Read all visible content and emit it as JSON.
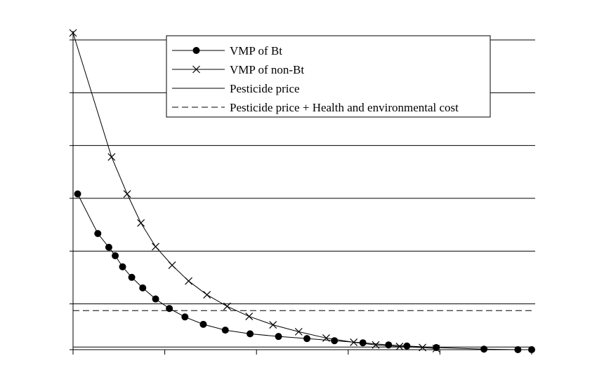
{
  "chart_data": {
    "type": "line",
    "title": "",
    "xlabel": "",
    "ylabel": "",
    "xlim": [
      0,
      50
    ],
    "ylim": [
      0,
      6
    ],
    "grid": true,
    "legend_position": "top-right",
    "series": [
      {
        "name": "VMP of Bt",
        "marker": "circle",
        "line": "solid",
        "x": [
          0.5,
          2.7,
          3.9,
          4.6,
          5.4,
          6.4,
          7.6,
          9.0,
          10.5,
          12.2,
          14.2,
          16.6,
          19.3,
          22.4,
          25.5,
          28.5,
          31.6,
          34.4,
          36.4,
          39.6,
          44.8,
          48.5,
          50.0
        ],
        "y": [
          2.95,
          2.2,
          1.94,
          1.78,
          1.57,
          1.37,
          1.17,
          0.96,
          0.78,
          0.62,
          0.48,
          0.37,
          0.3,
          0.25,
          0.21,
          0.17,
          0.13,
          0.09,
          0.07,
          0.04,
          0.01,
          0.0,
          0.0
        ]
      },
      {
        "name": "VMP of non-Bt",
        "marker": "x",
        "line": "solid",
        "x": [
          0.0,
          4.2,
          5.9,
          7.4,
          9.0,
          10.8,
          12.6,
          14.6,
          16.8,
          19.2,
          21.8,
          24.6,
          27.6,
          30.6,
          33.0,
          35.6,
          38.1,
          39.6
        ],
        "y": [
          6.0,
          3.65,
          2.95,
          2.4,
          1.95,
          1.6,
          1.3,
          1.04,
          0.82,
          0.63,
          0.47,
          0.34,
          0.22,
          0.14,
          0.09,
          0.06,
          0.04,
          0.02
        ]
      },
      {
        "name": "Pesticide price",
        "marker": "none",
        "line": "solid",
        "x": [
          0,
          50
        ],
        "y": [
          0.05,
          0.05
        ]
      },
      {
        "name": "Pesticide price + Health and environmental cost",
        "marker": "none",
        "line": "dashed",
        "x": [
          0,
          50
        ],
        "y": [
          0.74,
          0.74
        ]
      }
    ],
    "colors": {
      "background": "#4a4a4a",
      "plot_area": "#ffffff",
      "ink": "#000000",
      "grid": "#000000"
    }
  }
}
